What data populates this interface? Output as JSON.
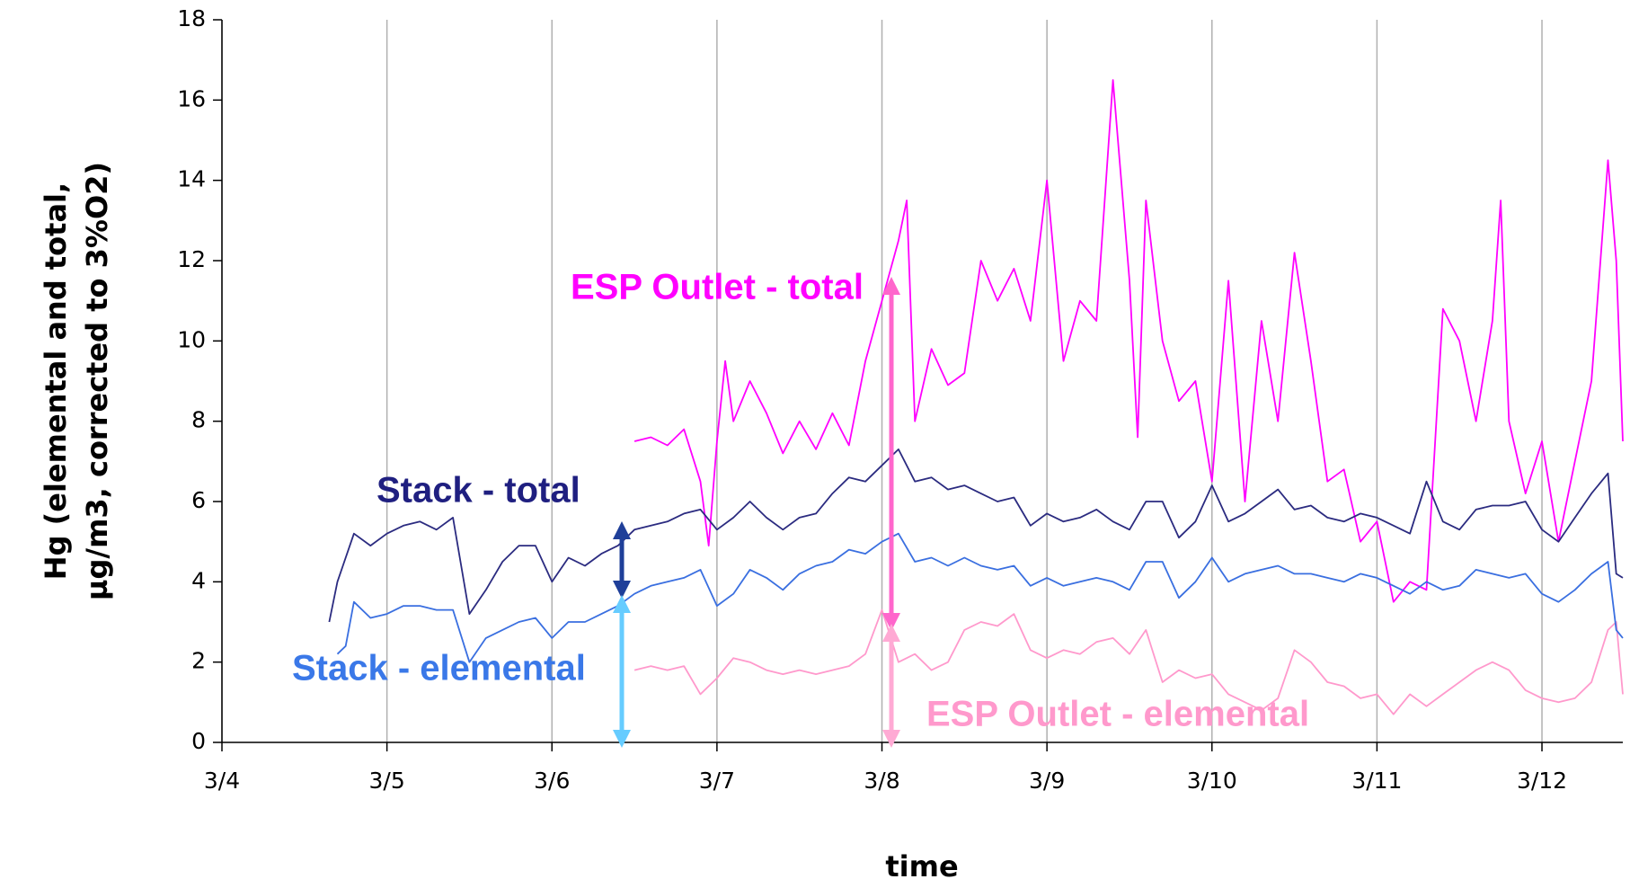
{
  "chart_data": {
    "type": "line",
    "xlabel": "time",
    "ylabel": [
      "Hg (elemental and total,",
      "µg/m3, corrected to 3%O2)"
    ],
    "xlim": [
      4,
      12.49
    ],
    "xticks": [
      {
        "value": 4,
        "label": "3/4"
      },
      {
        "value": 5,
        "label": "3/5"
      },
      {
        "value": 6,
        "label": "3/6"
      },
      {
        "value": 7,
        "label": "3/7"
      },
      {
        "value": 8,
        "label": "3/8"
      },
      {
        "value": 9,
        "label": "3/9"
      },
      {
        "value": 10,
        "label": "3/10"
      },
      {
        "value": 11,
        "label": "3/11"
      },
      {
        "value": 12,
        "label": "3/12"
      }
    ],
    "ylim": [
      0,
      18
    ],
    "yticks": [
      0,
      2,
      4,
      6,
      8,
      10,
      12,
      14,
      16,
      18
    ],
    "grid": "x",
    "annotations": [
      {
        "text": "ESP Outlet - total",
        "color": "#ff00ff"
      },
      {
        "text": "Stack - total",
        "color": "#1f1f80"
      },
      {
        "text": "Stack - elemental",
        "color": "#3a78e8"
      },
      {
        "text": "ESP Outlet - elemental",
        "color": "#ff99cc"
      }
    ],
    "series": [
      {
        "name": "ESP Outlet - elemental",
        "color": "#ff99cc",
        "x": [
          6.5,
          6.6,
          6.7,
          6.8,
          6.9,
          7.0,
          7.1,
          7.2,
          7.3,
          7.4,
          7.5,
          7.6,
          7.7,
          7.8,
          7.9,
          8.0,
          8.1,
          8.2,
          8.3,
          8.4,
          8.5,
          8.6,
          8.7,
          8.8,
          8.9,
          9.0,
          9.1,
          9.2,
          9.3,
          9.4,
          9.5,
          9.6,
          9.7,
          9.8,
          9.9,
          10.0,
          10.1,
          10.2,
          10.3,
          10.4,
          10.5,
          10.6,
          10.7,
          10.8,
          10.9,
          11.0,
          11.1,
          11.2,
          11.3,
          11.4,
          11.6,
          11.7,
          11.8,
          11.9,
          12.0,
          12.1,
          12.2,
          12.3,
          12.4,
          12.45,
          12.49
        ],
        "values": [
          1.8,
          1.9,
          1.8,
          1.9,
          1.2,
          1.6,
          2.1,
          2.0,
          1.8,
          1.7,
          1.8,
          1.7,
          1.8,
          1.9,
          2.2,
          3.3,
          2.0,
          2.2,
          1.8,
          2.0,
          2.8,
          3.0,
          2.9,
          3.2,
          2.3,
          2.1,
          2.3,
          2.2,
          2.5,
          2.6,
          2.2,
          2.8,
          1.5,
          1.8,
          1.6,
          1.7,
          1.2,
          1.0,
          0.8,
          1.1,
          2.3,
          2.0,
          1.5,
          1.4,
          1.1,
          1.2,
          0.7,
          1.2,
          0.9,
          1.2,
          1.8,
          2.0,
          1.8,
          1.3,
          1.1,
          1.0,
          1.1,
          1.5,
          2.8,
          3.0,
          1.2
        ]
      },
      {
        "name": "ESP Outlet - total",
        "color": "#ff00ff",
        "x": [
          6.5,
          6.6,
          6.7,
          6.8,
          6.9,
          6.95,
          7.0,
          7.05,
          7.1,
          7.2,
          7.3,
          7.4,
          7.5,
          7.6,
          7.7,
          7.8,
          7.9,
          8.0,
          8.1,
          8.15,
          8.2,
          8.3,
          8.4,
          8.5,
          8.6,
          8.7,
          8.8,
          8.9,
          9.0,
          9.1,
          9.2,
          9.3,
          9.4,
          9.5,
          9.55,
          9.6,
          9.7,
          9.8,
          9.9,
          10.0,
          10.1,
          10.2,
          10.3,
          10.4,
          10.5,
          10.6,
          10.7,
          10.8,
          10.9,
          11.0,
          11.1,
          11.2,
          11.3,
          11.4,
          11.5,
          11.6,
          11.7,
          11.75,
          11.8,
          11.9,
          12.0,
          12.1,
          12.2,
          12.3,
          12.4,
          12.45,
          12.49
        ],
        "values": [
          7.5,
          7.6,
          7.4,
          7.8,
          6.5,
          4.9,
          7.5,
          9.5,
          8.0,
          9.0,
          8.2,
          7.2,
          8.0,
          7.3,
          8.2,
          7.4,
          9.5,
          11.0,
          12.5,
          13.5,
          8.0,
          9.8,
          8.9,
          9.2,
          12.0,
          11.0,
          11.8,
          10.5,
          14.0,
          9.5,
          11.0,
          10.5,
          16.5,
          11.5,
          7.6,
          13.5,
          10.0,
          8.5,
          9.0,
          6.5,
          11.5,
          6.0,
          10.5,
          8.0,
          12.2,
          9.5,
          6.5,
          6.8,
          5.0,
          5.5,
          3.5,
          4.0,
          3.8,
          10.8,
          10.0,
          8.0,
          10.5,
          13.5,
          8.0,
          6.2,
          7.5,
          5.0,
          7.0,
          9.0,
          14.5,
          12.0,
          7.5
        ]
      },
      {
        "name": "Stack - elemental",
        "color": "#3a6fe0",
        "x": [
          4.7,
          4.75,
          4.8,
          4.9,
          5.0,
          5.1,
          5.2,
          5.3,
          5.4,
          5.5,
          5.6,
          5.7,
          5.8,
          5.9,
          6.0,
          6.1,
          6.2,
          6.3,
          6.4,
          6.5,
          6.6,
          6.7,
          6.8,
          6.9,
          7.0,
          7.1,
          7.2,
          7.3,
          7.4,
          7.5,
          7.6,
          7.7,
          7.8,
          7.9,
          8.0,
          8.1,
          8.2,
          8.3,
          8.4,
          8.5,
          8.6,
          8.7,
          8.8,
          8.9,
          9.0,
          9.1,
          9.2,
          9.3,
          9.4,
          9.5,
          9.6,
          9.7,
          9.8,
          9.9,
          10.0,
          10.1,
          10.2,
          10.3,
          10.4,
          10.5,
          10.6,
          10.7,
          10.8,
          10.9,
          11.0,
          11.1,
          11.2,
          11.3,
          11.4,
          11.5,
          11.6,
          11.7,
          11.8,
          11.9,
          12.0,
          12.1,
          12.2,
          12.3,
          12.4,
          12.45,
          12.49
        ],
        "values": [
          2.2,
          2.4,
          3.5,
          3.1,
          3.2,
          3.4,
          3.4,
          3.3,
          3.3,
          2.0,
          2.6,
          2.8,
          3.0,
          3.1,
          2.6,
          3.0,
          3.0,
          3.2,
          3.4,
          3.7,
          3.9,
          4.0,
          4.1,
          4.3,
          3.4,
          3.7,
          4.3,
          4.1,
          3.8,
          4.2,
          4.4,
          4.5,
          4.8,
          4.7,
          5.0,
          5.2,
          4.5,
          4.6,
          4.4,
          4.6,
          4.4,
          4.3,
          4.4,
          3.9,
          4.1,
          3.9,
          4.0,
          4.1,
          4.0,
          3.8,
          4.5,
          4.5,
          3.6,
          4.0,
          4.6,
          4.0,
          4.2,
          4.3,
          4.4,
          4.2,
          4.2,
          4.1,
          4.0,
          4.2,
          4.1,
          3.9,
          3.7,
          4.0,
          3.8,
          3.9,
          4.3,
          4.2,
          4.1,
          4.2,
          3.7,
          3.5,
          3.8,
          4.2,
          4.5,
          2.8,
          2.6
        ]
      },
      {
        "name": "Stack - total",
        "color": "#2b2b80",
        "x": [
          4.65,
          4.7,
          4.8,
          4.9,
          5.0,
          5.1,
          5.2,
          5.3,
          5.4,
          5.5,
          5.6,
          5.7,
          5.8,
          5.9,
          6.0,
          6.1,
          6.2,
          6.3,
          6.4,
          6.5,
          6.6,
          6.7,
          6.8,
          6.9,
          7.0,
          7.1,
          7.2,
          7.3,
          7.4,
          7.5,
          7.6,
          7.7,
          7.8,
          7.9,
          8.0,
          8.1,
          8.2,
          8.3,
          8.4,
          8.5,
          8.6,
          8.7,
          8.8,
          8.9,
          9.0,
          9.1,
          9.2,
          9.3,
          9.4,
          9.5,
          9.6,
          9.7,
          9.8,
          9.9,
          10.0,
          10.1,
          10.2,
          10.3,
          10.4,
          10.5,
          10.6,
          10.7,
          10.8,
          10.9,
          11.0,
          11.1,
          11.2,
          11.3,
          11.4,
          11.5,
          11.6,
          11.7,
          11.8,
          11.9,
          12.0,
          12.1,
          12.2,
          12.3,
          12.4,
          12.45,
          12.49
        ],
        "values": [
          3.0,
          4.0,
          5.2,
          4.9,
          5.2,
          5.4,
          5.5,
          5.3,
          5.6,
          3.2,
          3.8,
          4.5,
          4.9,
          4.9,
          4.0,
          4.6,
          4.4,
          4.7,
          4.9,
          5.3,
          5.4,
          5.5,
          5.7,
          5.8,
          5.3,
          5.6,
          6.0,
          5.6,
          5.3,
          5.6,
          5.7,
          6.2,
          6.6,
          6.5,
          6.9,
          7.3,
          6.5,
          6.6,
          6.3,
          6.4,
          6.2,
          6.0,
          6.1,
          5.4,
          5.7,
          5.5,
          5.6,
          5.8,
          5.5,
          5.3,
          6.0,
          6.0,
          5.1,
          5.5,
          6.4,
          5.5,
          5.7,
          6.0,
          6.3,
          5.8,
          5.9,
          5.6,
          5.5,
          5.7,
          5.6,
          5.4,
          5.2,
          6.5,
          5.5,
          5.3,
          5.8,
          5.9,
          5.9,
          6.0,
          5.3,
          5.0,
          5.6,
          6.2,
          6.7,
          4.2,
          4.1
        ]
      }
    ]
  }
}
